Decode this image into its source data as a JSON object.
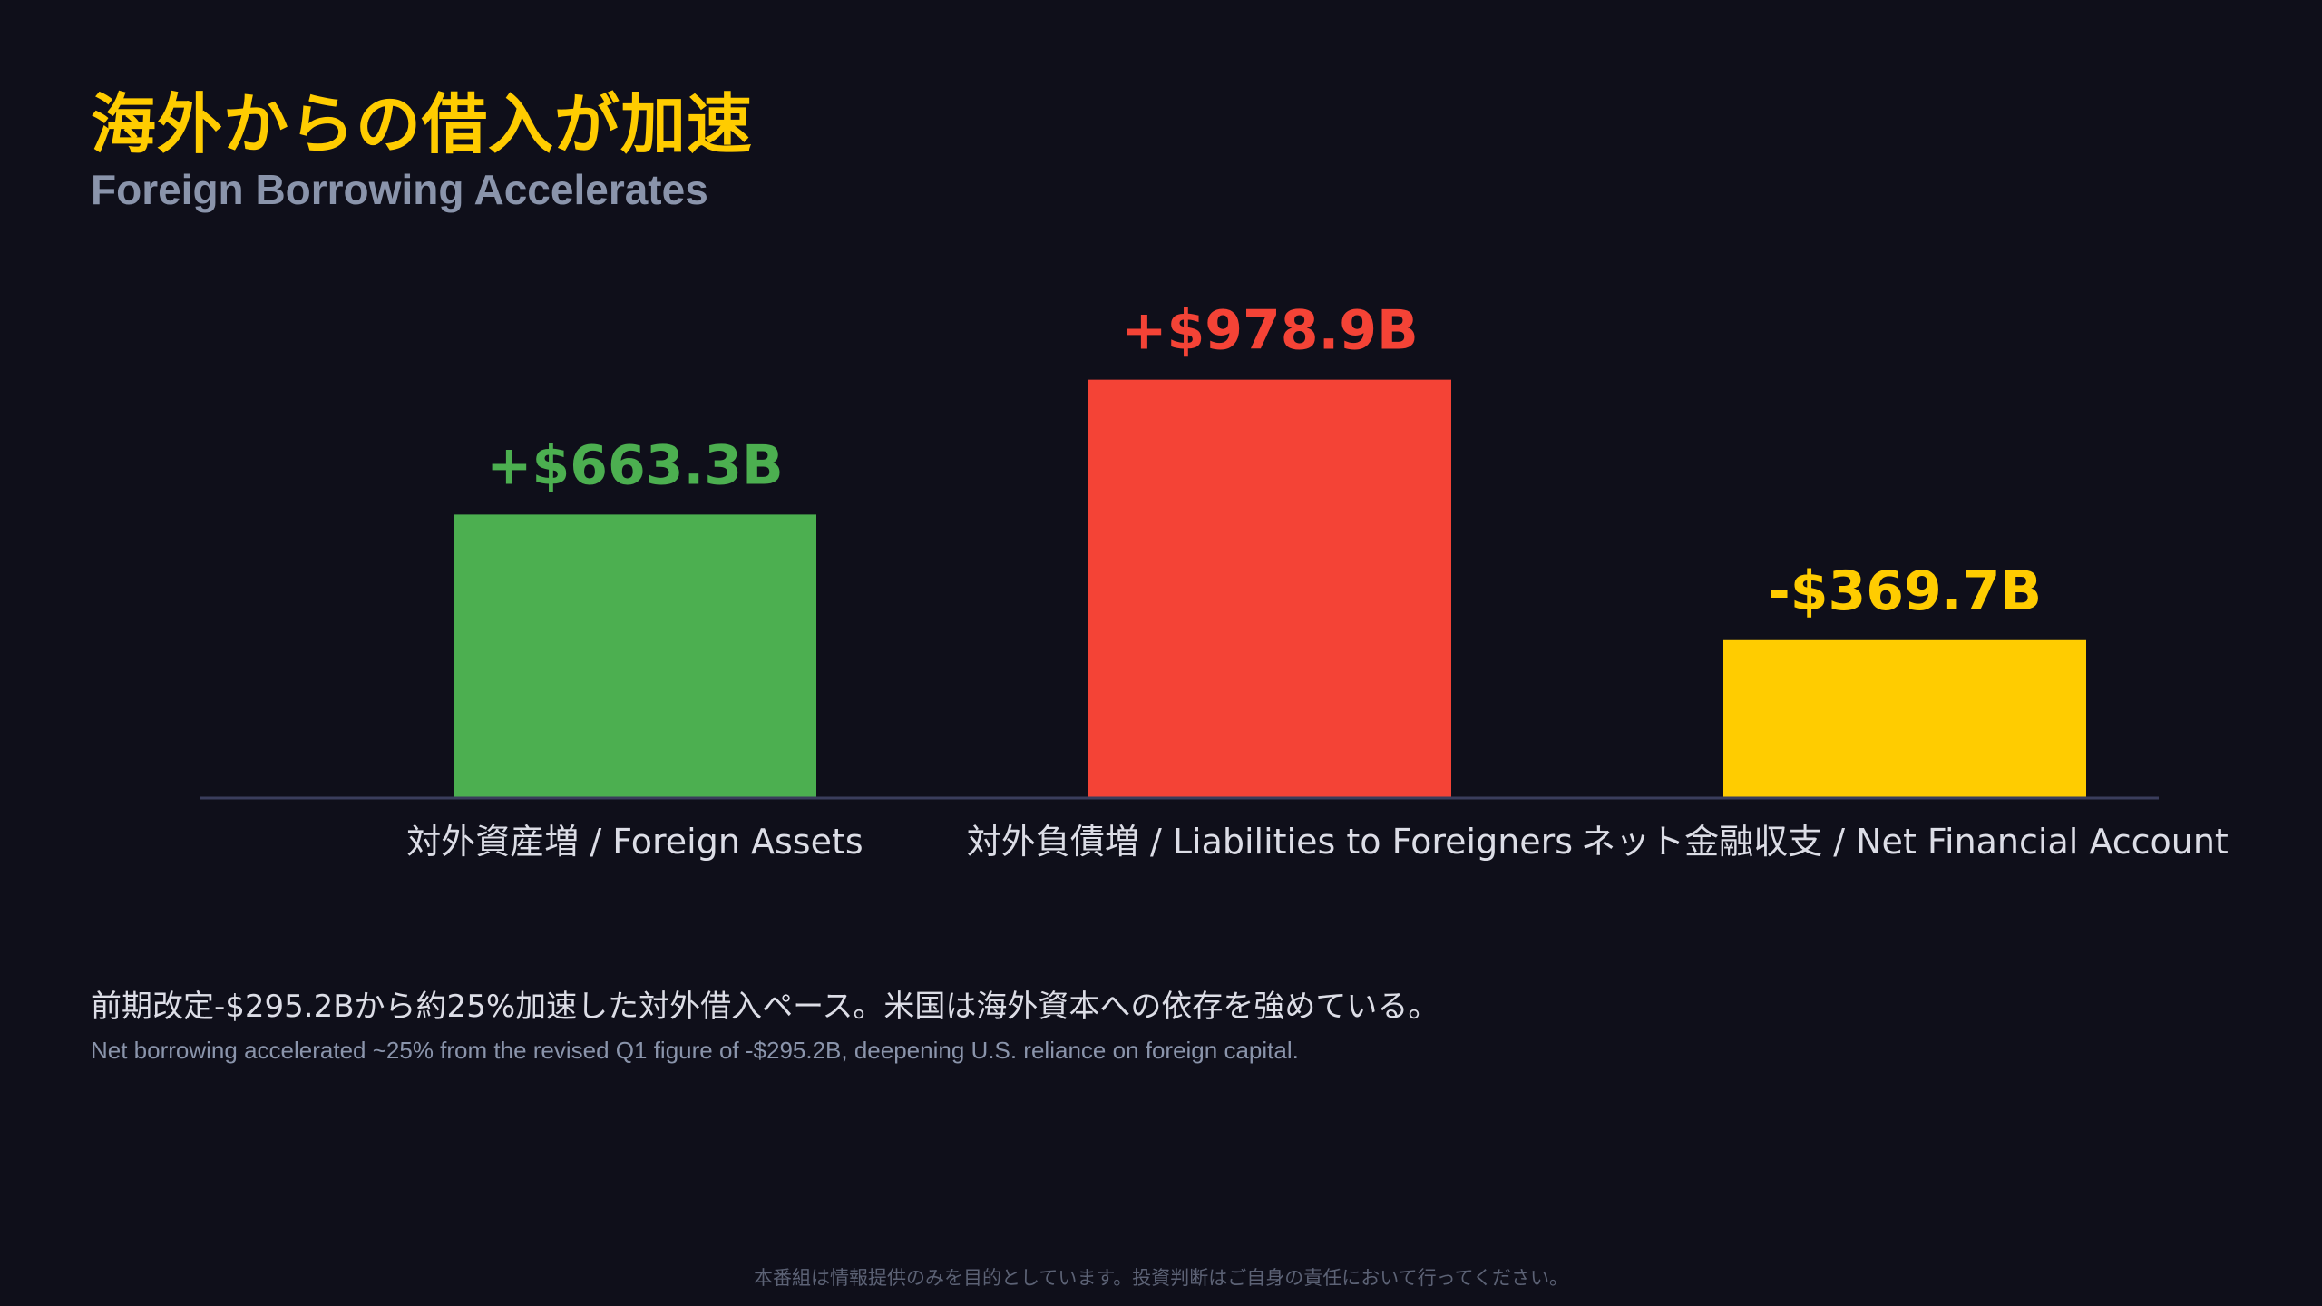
{
  "header": {
    "title": "海外からの借入が加速",
    "subtitle": "Foreign Borrowing Accelerates"
  },
  "chart_data": {
    "type": "bar",
    "categories": [
      "対外資産増 / Foreign Assets",
      "対外負債増 / Liabilities to Foreigners",
      "ネット金融収支 / Net Financial Account"
    ],
    "values": [
      663.3,
      978.9,
      369.7
    ],
    "value_labels": [
      "+$663.3B",
      "+$978.9B",
      "-$369.7B"
    ],
    "colors": [
      "#4caf50",
      "#f44336",
      "#ffcc00"
    ],
    "axis_color": "#3a3d5c",
    "ylim": [
      0,
      1000
    ],
    "grid": false,
    "legend": "none",
    "unit": "USD billions"
  },
  "notes": {
    "jp": "前期改定-$295.2Bから約25%加速した対外借入ペース。米国は海外資本への依存を強めている。",
    "en": "Net borrowing accelerated ~25% from the revised Q1 figure of -$295.2B, deepening U.S. reliance on foreign capital."
  },
  "footer": {
    "disclaimer": "本番組は情報提供のみを目的としています。投資判断はご自身の責任において行ってください。"
  }
}
